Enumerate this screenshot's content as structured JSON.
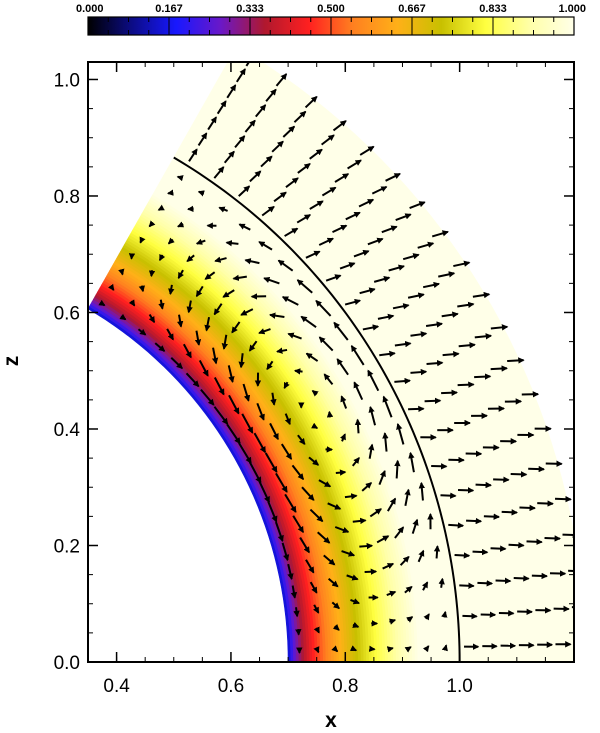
{
  "chart_data": {
    "type": "heatmap",
    "title": "",
    "xlabel": "x",
    "ylabel": "z",
    "xlim": [
      0.35,
      1.2
    ],
    "ylim": [
      0.0,
      1.03
    ],
    "x_ticks": [
      0.4,
      0.6,
      0.8,
      1.0
    ],
    "x_tick_labels": [
      "0.4",
      "0.6",
      "0.8",
      "1.0"
    ],
    "y_ticks": [
      0.0,
      0.2,
      0.4,
      0.6,
      0.8,
      1.0
    ],
    "y_tick_labels": [
      "0.0",
      "0.2",
      "0.4",
      "0.6",
      "0.8",
      "1.0"
    ],
    "colorbar": {
      "range": [
        0.0,
        1.0
      ],
      "tick_labels": [
        "0.000",
        "0.167",
        "0.333",
        "0.500",
        "0.667",
        "0.833",
        "1.000"
      ],
      "colors": [
        "#000000",
        "#0c0c86",
        "#1818ff",
        "#6a18c8",
        "#b0182e",
        "#ff2020",
        "#ff8020",
        "#ffb018",
        "#c8c000",
        "#ffff40",
        "#ffffa8",
        "#ffffe8"
      ]
    },
    "field": {
      "domain_r": [
        0.7,
        1.22
      ],
      "domain_theta_deg": [
        0,
        60
      ],
      "transition_r": 0.745,
      "saturation_r": 0.93
    },
    "reference_circle": {
      "r": 1.0,
      "theta_deg": [
        0,
        60
      ]
    },
    "vectors": {
      "description_free": true,
      "r_range": [
        0.72,
        1.2
      ],
      "cell_pattern": "two counter-rotating meridional rolls inside r=1, outflow beyond"
    }
  }
}
